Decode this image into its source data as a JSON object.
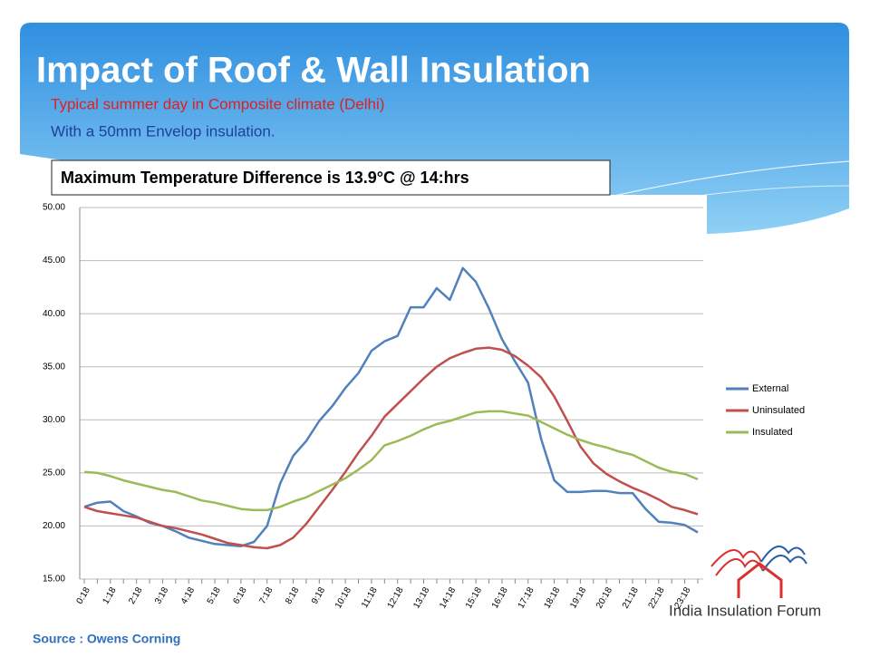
{
  "title": "Impact of Roof & Wall Insulation",
  "bullets": [
    "Typical summer day in Composite climate (Delhi)",
    "With a 50mm  Envelop insulation."
  ],
  "callout": "Maximum Temperature Difference is 13.9°C @ 14:hrs",
  "source": "Source : Owens Corning",
  "logo": "India Insulation Forum",
  "chart_data": {
    "type": "line",
    "categories": [
      "0:18",
      null,
      "1:18",
      null,
      "2:18",
      null,
      "3:18",
      null,
      "4:18",
      null,
      "5:18",
      null,
      "6:18",
      null,
      "7:18",
      null,
      "8:18",
      null,
      "9:18",
      null,
      "10:18",
      null,
      "11:18",
      null,
      "12:18",
      null,
      "13:18",
      null,
      "14:18",
      null,
      "15:18",
      null,
      "16:18",
      null,
      "17:18",
      null,
      "18:18",
      null,
      "19:18",
      null,
      "20:18",
      null,
      "21:18",
      null,
      "22:18",
      null,
      "23:18",
      null
    ],
    "series": [
      {
        "name": "External",
        "color": "#4f81bd",
        "values": [
          21.8,
          22.2,
          22.3,
          21.4,
          20.9,
          20.3,
          20.0,
          19.5,
          18.9,
          18.6,
          18.3,
          18.2,
          18.1,
          18.5,
          20.0,
          24.0,
          26.6,
          28.0,
          29.9,
          31.3,
          33.0,
          34.4,
          36.5,
          37.4,
          37.9,
          40.6,
          40.6,
          42.4,
          41.3,
          44.3,
          43.0,
          40.5,
          37.6,
          35.5,
          33.5,
          28.2,
          24.3,
          23.2,
          23.2,
          23.3,
          23.3,
          23.1,
          23.1,
          21.6,
          20.4,
          20.3,
          20.1,
          19.4
        ]
      },
      {
        "name": "Uninsulated",
        "color": "#c0504d",
        "values": [
          21.8,
          21.4,
          21.2,
          21.0,
          20.8,
          20.4,
          20.0,
          19.8,
          19.5,
          19.2,
          18.8,
          18.4,
          18.2,
          18.0,
          17.9,
          18.2,
          18.9,
          20.2,
          21.8,
          23.4,
          25.1,
          26.9,
          28.5,
          30.3,
          31.5,
          32.7,
          33.9,
          35.0,
          35.8,
          36.3,
          36.7,
          36.8,
          36.6,
          36.0,
          35.1,
          34.0,
          32.2,
          29.9,
          27.5,
          25.9,
          24.9,
          24.2,
          23.6,
          23.1,
          22.5,
          21.8,
          21.5,
          21.1
        ]
      },
      {
        "name": "Insulated",
        "color": "#9bbb59",
        "values": [
          25.1,
          25.0,
          24.7,
          24.3,
          24.0,
          23.7,
          23.4,
          23.2,
          22.8,
          22.4,
          22.2,
          21.9,
          21.6,
          21.5,
          21.5,
          21.8,
          22.3,
          22.7,
          23.3,
          23.9,
          24.5,
          25.3,
          26.2,
          27.6,
          28.0,
          28.5,
          29.1,
          29.6,
          29.9,
          30.3,
          30.7,
          30.8,
          30.8,
          30.6,
          30.4,
          29.8,
          29.2,
          28.6,
          28.1,
          27.7,
          27.4,
          27.0,
          26.7,
          26.1,
          25.5,
          25.1,
          24.9,
          24.4
        ]
      }
    ],
    "ylim": [
      15,
      50
    ],
    "yticks": [
      {
        "value": 15,
        "label": "15.00"
      },
      {
        "value": 20,
        "label": "20.00"
      },
      {
        "value": 25,
        "label": "25.00"
      },
      {
        "value": 30,
        "label": "30.00"
      },
      {
        "value": 35,
        "label": "35.00"
      },
      {
        "value": 40,
        "label": "40.00"
      },
      {
        "value": 45,
        "label": "45.00"
      },
      {
        "value": 50,
        "label": "50.00"
      }
    ]
  }
}
